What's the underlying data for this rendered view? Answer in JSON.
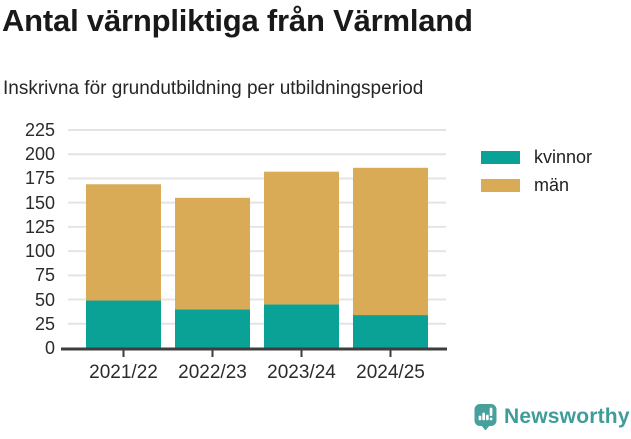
{
  "chart_data": {
    "type": "bar",
    "stacked": true,
    "title": "Antal värnpliktiga från Värmland",
    "subtitle": "Inskrivna för grundutbildning per utbildningsperiod",
    "categories": [
      "2021/22",
      "2022/23",
      "2023/24",
      "2024/25"
    ],
    "series": [
      {
        "name": "kvinnor",
        "color": "#0aa296",
        "values": [
          49,
          40,
          45,
          34
        ]
      },
      {
        "name": "män",
        "color": "#d9ab57",
        "values": [
          120,
          115,
          137,
          152
        ]
      }
    ],
    "totals": [
      169,
      155,
      182,
      186
    ],
    "xlabel": "",
    "ylabel": "",
    "ylim": [
      0,
      225
    ],
    "ytick_step": 25,
    "yticks": [
      0,
      25,
      50,
      75,
      100,
      125,
      150,
      175,
      200,
      225
    ],
    "grid": true,
    "legend_position": "right",
    "style": {
      "grid_color": "#e4e4e4",
      "axis_color": "#3d3d3d",
      "tick_label_color": "#2b2b2b"
    }
  },
  "branding": {
    "name": "Newsworthy",
    "icon": "speech-bubble-bar-chart-icon",
    "color": "#3e9c99",
    "icon_color": "#47a09c"
  }
}
